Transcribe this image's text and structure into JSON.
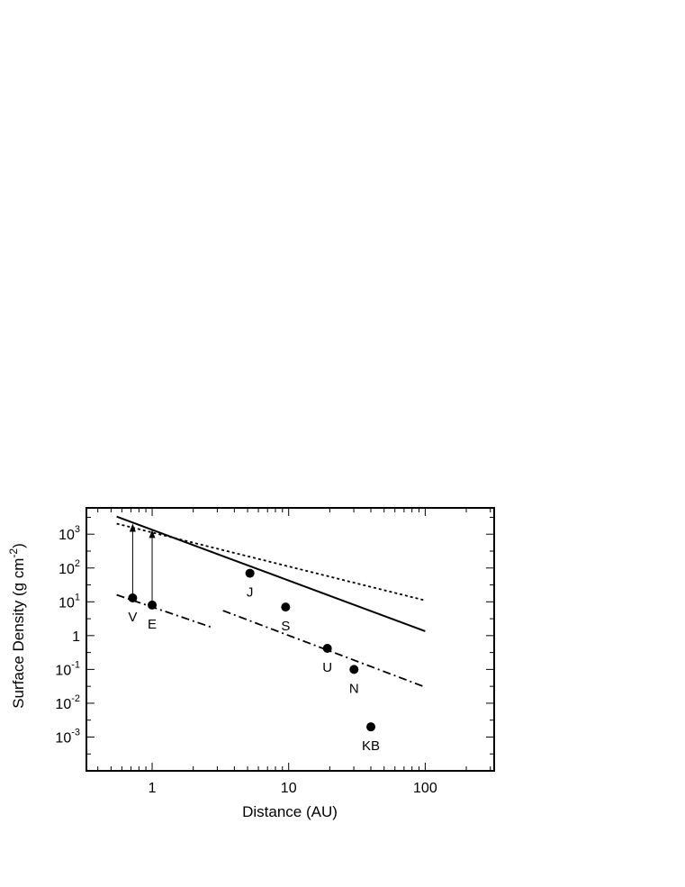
{
  "chart_data": {
    "type": "scatter",
    "xlabel": "Distance (AU)",
    "ylabel_main": "Surface Density (g cm",
    "ylabel_sup": "-2",
    "ylabel_close": ")",
    "x_scale": "log",
    "y_scale": "log",
    "xlim": [
      0.33,
      320
    ],
    "ylim": [
      0.0001,
      6000
    ],
    "x_ticks": [
      {
        "value": 1,
        "label": "1"
      },
      {
        "value": 10,
        "label": "10"
      },
      {
        "value": 100,
        "label": "100"
      }
    ],
    "y_ticks": [
      {
        "value": 0.001,
        "base": "10",
        "exp": "-3"
      },
      {
        "value": 0.01,
        "base": "10",
        "exp": "-2"
      },
      {
        "value": 0.1,
        "base": "10",
        "exp": "-1"
      },
      {
        "value": 1,
        "base": "1",
        "exp": ""
      },
      {
        "value": 10,
        "base": "10",
        "exp": "1"
      },
      {
        "value": 100,
        "base": "10",
        "exp": "2"
      },
      {
        "value": 1000,
        "base": "10",
        "exp": "3"
      }
    ],
    "points": [
      {
        "label": "V",
        "x": 0.72,
        "y": 13
      },
      {
        "label": "E",
        "x": 1.0,
        "y": 8
      },
      {
        "label": "J",
        "x": 5.2,
        "y": 70
      },
      {
        "label": "S",
        "x": 9.5,
        "y": 7
      },
      {
        "label": "U",
        "x": 19.2,
        "y": 0.42
      },
      {
        "label": "N",
        "x": 30.1,
        "y": 0.1
      },
      {
        "label": "KB",
        "x": 40,
        "y": 0.002
      }
    ],
    "arrows": [
      {
        "x": 0.72,
        "from": 13,
        "to": 1600
      },
      {
        "x": 1.0,
        "from": 8,
        "to": 1050
      }
    ],
    "lines": [
      {
        "style": "solid",
        "x": [
          0.55,
          100
        ],
        "y": [
          3300,
          1.35
        ]
      },
      {
        "style": "dotted",
        "x": [
          0.55,
          100
        ],
        "y": [
          2050,
          11
        ]
      },
      {
        "style": "dash-dot",
        "x": [
          0.55,
          2.8
        ],
        "y": [
          16,
          1.7
        ]
      },
      {
        "style": "dash-dot",
        "x": [
          3.3,
          100
        ],
        "y": [
          5.5,
          0.03
        ]
      }
    ],
    "grid": false,
    "legend": "none"
  }
}
